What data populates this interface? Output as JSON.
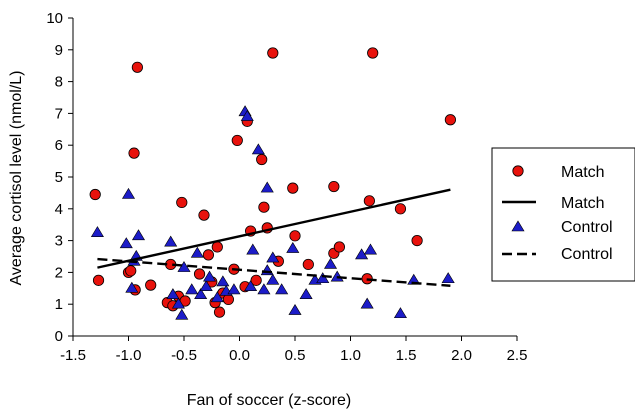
{
  "chart_data": {
    "type": "scatter",
    "title": "",
    "xlabel": "Fan of soccer (z-score)",
    "ylabel": "Average cortisol level (nmol/L)",
    "xlim": [
      -1.5,
      2.5
    ],
    "ylim": [
      0,
      10
    ],
    "xticks": [
      "-1.5",
      "-1.0",
      "-0.5",
      "0.0",
      "0.5",
      "1.0",
      "1.5",
      "2.0",
      "2.5"
    ],
    "yticks": [
      "0",
      "1",
      "2",
      "3",
      "4",
      "5",
      "6",
      "7",
      "8",
      "9",
      "10"
    ],
    "grid": false,
    "legend_position": "right",
    "legend": [
      {
        "label": "Match",
        "kind": "marker-circle"
      },
      {
        "label": "Match",
        "kind": "line-solid"
      },
      {
        "label": "Control",
        "kind": "marker-triangle"
      },
      {
        "label": "Control",
        "kind": "line-dashed"
      }
    ],
    "colors": {
      "match_marker": "#e8120c",
      "control_marker": "#1c1cc8",
      "marker_edge": "#000000",
      "trend_line": "#000000"
    },
    "series": [
      {
        "name": "Match",
        "marker": "circle",
        "points": [
          [
            -1.3,
            4.45
          ],
          [
            -1.27,
            1.75
          ],
          [
            -1.0,
            2.0
          ],
          [
            -0.98,
            2.05
          ],
          [
            -0.95,
            5.75
          ],
          [
            -0.92,
            8.45
          ],
          [
            -0.94,
            1.45
          ],
          [
            -0.8,
            1.6
          ],
          [
            -0.65,
            1.05
          ],
          [
            -0.62,
            2.25
          ],
          [
            -0.6,
            0.95
          ],
          [
            -0.55,
            1.25
          ],
          [
            -0.52,
            4.2
          ],
          [
            -0.49,
            1.1
          ],
          [
            -0.36,
            1.95
          ],
          [
            -0.32,
            3.8
          ],
          [
            -0.28,
            2.55
          ],
          [
            -0.25,
            1.7
          ],
          [
            -0.22,
            1.05
          ],
          [
            -0.2,
            2.8
          ],
          [
            -0.18,
            0.75
          ],
          [
            -0.15,
            1.35
          ],
          [
            -0.1,
            1.15
          ],
          [
            -0.05,
            2.1
          ],
          [
            -0.02,
            6.15
          ],
          [
            0.05,
            1.55
          ],
          [
            0.07,
            6.75
          ],
          [
            0.1,
            3.3
          ],
          [
            0.15,
            1.75
          ],
          [
            0.2,
            5.55
          ],
          [
            0.22,
            4.05
          ],
          [
            0.25,
            3.4
          ],
          [
            0.3,
            8.9
          ],
          [
            0.35,
            2.35
          ],
          [
            0.48,
            4.65
          ],
          [
            0.5,
            3.15
          ],
          [
            0.62,
            2.25
          ],
          [
            0.85,
            4.7
          ],
          [
            0.85,
            2.6
          ],
          [
            0.9,
            2.8
          ],
          [
            1.15,
            1.8
          ],
          [
            1.17,
            4.25
          ],
          [
            1.2,
            8.9
          ],
          [
            1.45,
            4.0
          ],
          [
            1.6,
            3.0
          ],
          [
            1.9,
            6.8
          ]
        ]
      },
      {
        "name": "Control",
        "marker": "triangle",
        "points": [
          [
            -1.28,
            3.25
          ],
          [
            -1.02,
            2.9
          ],
          [
            -1.0,
            4.45
          ],
          [
            -0.97,
            1.5
          ],
          [
            -0.95,
            2.35
          ],
          [
            -0.93,
            2.5
          ],
          [
            -0.91,
            3.15
          ],
          [
            -0.62,
            2.95
          ],
          [
            -0.6,
            1.3
          ],
          [
            -0.55,
            1.0
          ],
          [
            -0.52,
            0.65
          ],
          [
            -0.5,
            2.15
          ],
          [
            -0.43,
            1.45
          ],
          [
            -0.38,
            2.6
          ],
          [
            -0.35,
            1.3
          ],
          [
            -0.3,
            1.55
          ],
          [
            -0.27,
            1.85
          ],
          [
            -0.2,
            1.2
          ],
          [
            -0.15,
            1.7
          ],
          [
            -0.12,
            1.4
          ],
          [
            -0.05,
            1.45
          ],
          [
            0.05,
            7.05
          ],
          [
            0.07,
            6.9
          ],
          [
            0.1,
            1.55
          ],
          [
            0.12,
            2.7
          ],
          [
            0.17,
            5.85
          ],
          [
            0.22,
            1.45
          ],
          [
            0.25,
            4.65
          ],
          [
            0.25,
            2.05
          ],
          [
            0.3,
            2.45
          ],
          [
            0.3,
            1.75
          ],
          [
            0.38,
            1.45
          ],
          [
            0.48,
            2.75
          ],
          [
            0.5,
            0.8
          ],
          [
            0.6,
            1.3
          ],
          [
            0.68,
            1.75
          ],
          [
            0.75,
            1.8
          ],
          [
            0.82,
            2.25
          ],
          [
            0.88,
            1.85
          ],
          [
            1.1,
            2.55
          ],
          [
            1.15,
            1.0
          ],
          [
            1.18,
            2.7
          ],
          [
            1.45,
            0.7
          ],
          [
            1.57,
            1.75
          ],
          [
            1.88,
            1.8
          ]
        ]
      }
    ],
    "trendlines": [
      {
        "name": "Match",
        "style": "solid",
        "x": [
          -1.28,
          1.9
        ],
        "y": [
          2.15,
          4.6
        ]
      },
      {
        "name": "Control",
        "style": "dashed",
        "x": [
          -1.28,
          1.9
        ],
        "y": [
          2.42,
          1.58
        ]
      }
    ]
  }
}
